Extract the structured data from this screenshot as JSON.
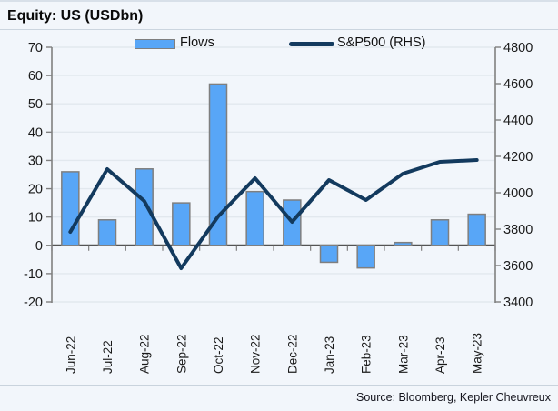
{
  "title": "Equity: US (USDbn)",
  "source": "Source: Bloomberg, Kepler Cheuvreux",
  "legend": {
    "flows": "Flows",
    "sp500": "S&P500 (RHS)"
  },
  "colors": {
    "background": "#F2F6FB",
    "bar_fill": "#58A6F7",
    "bar_border": "#7F7F7F",
    "line": "#133A5E",
    "gridline": "#E2E8EE",
    "axis": "#808080",
    "zero_line": "#545454",
    "text": "#1A1A1A"
  },
  "chart_data": {
    "type": "combo",
    "title": "Equity: US (USDbn)",
    "categories": [
      "Jun-22",
      "Jul-22",
      "Aug-22",
      "Sep-22",
      "Oct-22",
      "Nov-22",
      "Dec-22",
      "Jan-23",
      "Feb-23",
      "Mar-23",
      "Apr-23",
      "May-23"
    ],
    "series": [
      {
        "name": "Flows",
        "type": "bar",
        "axis": "left",
        "values": [
          26,
          9,
          27,
          15,
          57,
          19,
          16,
          -6,
          -8,
          1,
          9,
          11
        ]
      },
      {
        "name": "S&P500 (RHS)",
        "type": "line",
        "axis": "right",
        "values": [
          3785,
          4130,
          3955,
          3585,
          3870,
          4080,
          3840,
          4070,
          3960,
          4105,
          4170,
          4180
        ]
      }
    ],
    "left_axis": {
      "min": -20,
      "max": 70,
      "step": 10,
      "ticks": [
        70,
        60,
        50,
        40,
        30,
        20,
        10,
        0,
        -10,
        -20
      ]
    },
    "right_axis": {
      "min": 3400,
      "max": 4800,
      "step": 200,
      "ticks": [
        4800,
        4600,
        4400,
        4200,
        4000,
        3800,
        3600,
        3400
      ]
    },
    "grid": true,
    "legend_position": "top"
  }
}
